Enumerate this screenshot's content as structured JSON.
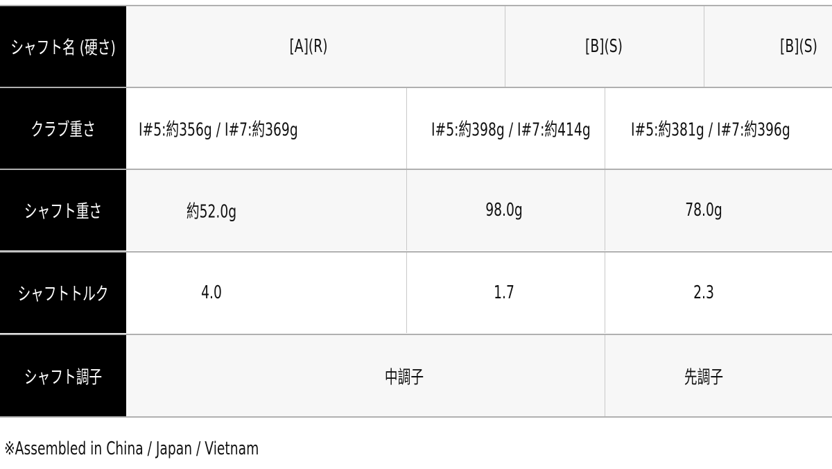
{
  "rows": [
    {
      "label": "シャフト名 (硬さ)",
      "cells": [
        "[A](R)",
        "[B](S)",
        "[B](S)"
      ]
    },
    {
      "label": "クラブ重さ",
      "cells": [
        "I#5:約356g / I#7:約369g",
        "I#5:約398g / I#7:約414g",
        "I#5:約381g / I#7:約396g"
      ]
    },
    {
      "label": "シャフト重さ",
      "cells": [
        "約52.0g",
        "98.0g",
        "78.0g"
      ]
    },
    {
      "label": "シャフトトルク",
      "cells": [
        "4.0",
        "1.7",
        "2.3"
      ]
    },
    {
      "label": "シャフト調子",
      "cells": [
        "中調子",
        "先調子"
      ]
    }
  ],
  "note": "※Assembled in China / Japan / Vietnam"
}
